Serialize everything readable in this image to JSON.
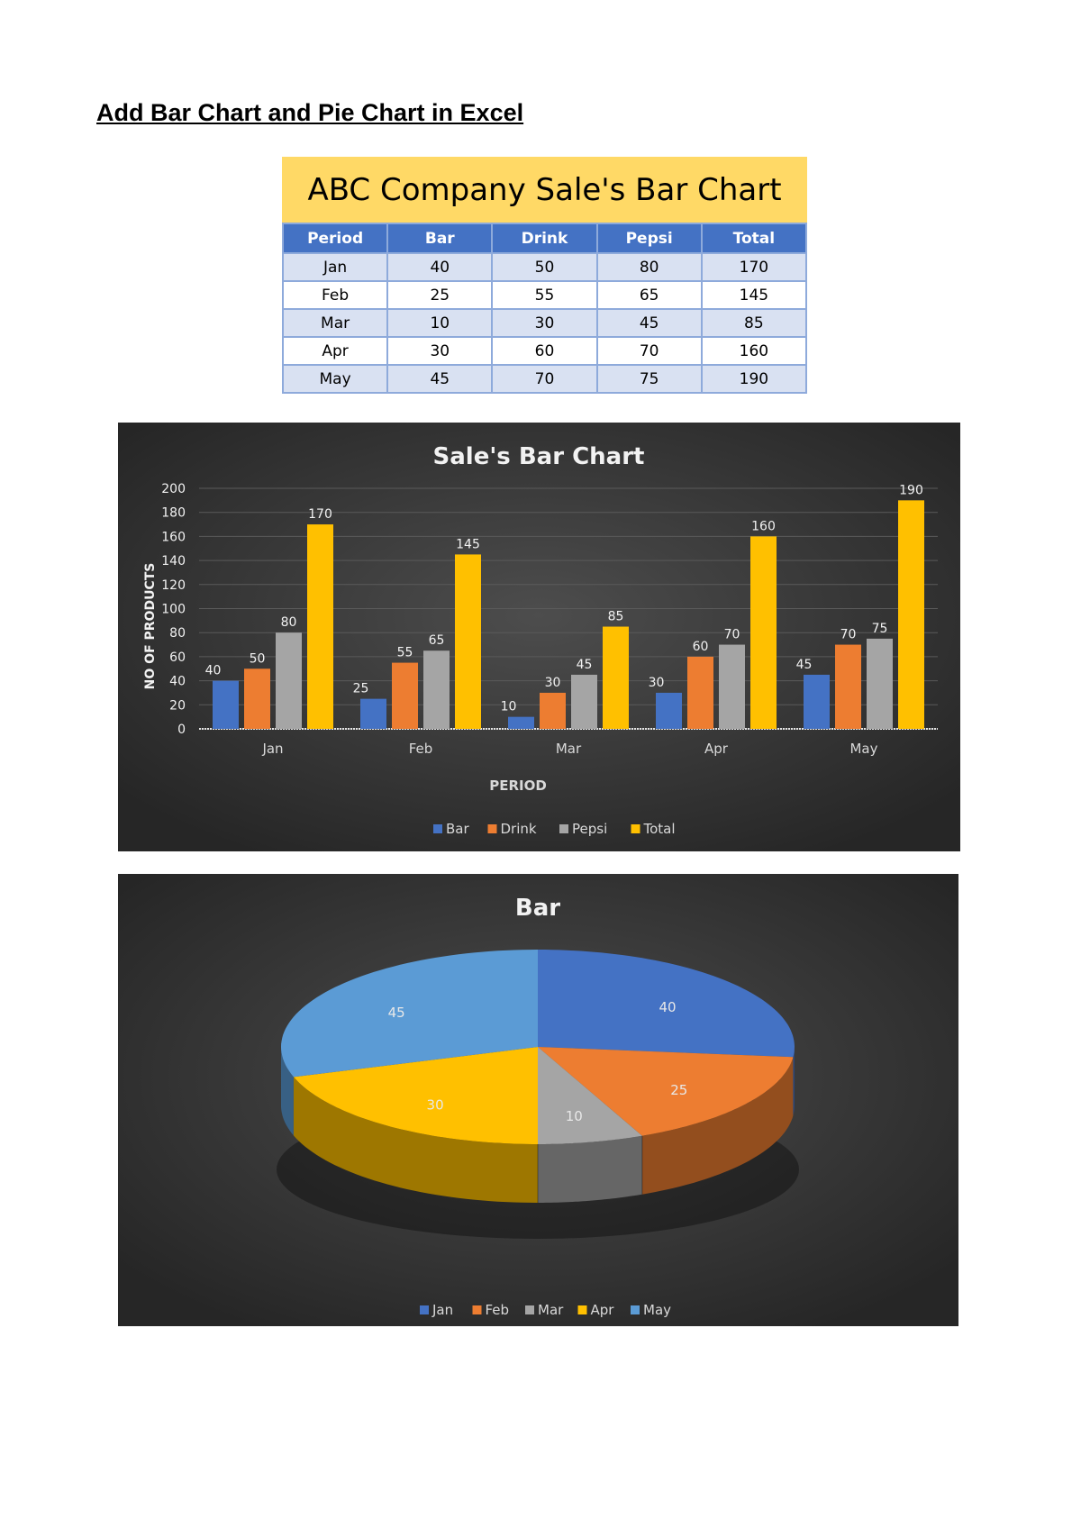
{
  "page": {
    "heading": "Add Bar Chart and Pie Chart in Excel"
  },
  "table": {
    "title": "ABC Company Sale's Bar Chart",
    "headers": [
      "Period",
      "Bar",
      "Drink",
      "Pepsi",
      "Total"
    ],
    "rows": [
      [
        "Jan",
        "40",
        "50",
        "80",
        "170"
      ],
      [
        "Feb",
        "25",
        "55",
        "65",
        "145"
      ],
      [
        "Mar",
        "10",
        "30",
        "45",
        "85"
      ],
      [
        "Apr",
        "30",
        "60",
        "70",
        "160"
      ],
      [
        "May",
        "45",
        "70",
        "75",
        "190"
      ]
    ]
  },
  "chart_data": [
    {
      "type": "bar",
      "title": "Sale's Bar Chart",
      "xlabel": "PERIOD",
      "ylabel": "NO OF PRODUCTS",
      "categories": [
        "Jan",
        "Feb",
        "Mar",
        "Apr",
        "May"
      ],
      "series": [
        {
          "name": "Bar",
          "values": [
            40,
            25,
            10,
            30,
            45
          ],
          "color": "#4472c4"
        },
        {
          "name": "Drink",
          "values": [
            50,
            55,
            30,
            60,
            70
          ],
          "color": "#ed7d31"
        },
        {
          "name": "Pepsi",
          "values": [
            80,
            65,
            45,
            70,
            75
          ],
          "color": "#a5a5a5"
        },
        {
          "name": "Total",
          "values": [
            170,
            145,
            85,
            160,
            190
          ],
          "color": "#ffc000"
        }
      ],
      "ylim": [
        0,
        200
      ],
      "yticks": [
        0,
        20,
        40,
        60,
        80,
        100,
        120,
        140,
        160,
        180,
        200
      ],
      "data_labels": true,
      "grid": true,
      "legend": "bottom",
      "background": "#3a3a3a"
    },
    {
      "type": "pie",
      "title": "Bar",
      "categories": [
        "Jan",
        "Feb",
        "Mar",
        "Apr",
        "May"
      ],
      "values": [
        40,
        25,
        10,
        30,
        45
      ],
      "colors": [
        "#4472c4",
        "#ed7d31",
        "#a5a5a5",
        "#ffc000",
        "#5b9bd5"
      ],
      "data_labels": true,
      "legend": "bottom",
      "style": "3d",
      "background": "#3a3a3a"
    }
  ]
}
